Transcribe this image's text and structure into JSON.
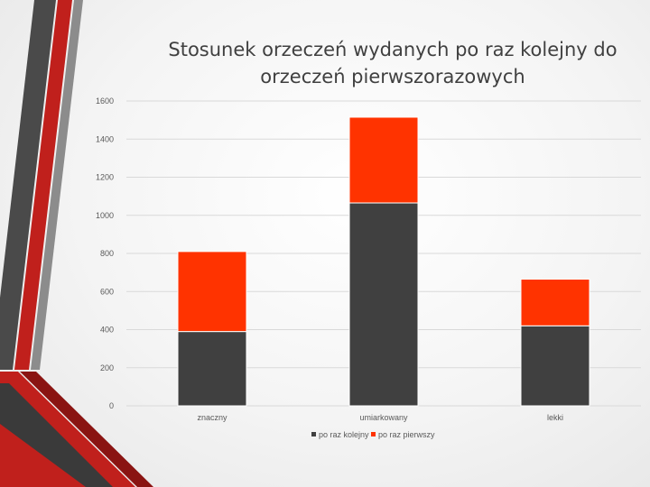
{
  "title_lines": [
    "Stosunek orzeczeń wydanych po raz kolejny do",
    "orzeczeń pierwszorazowych"
  ],
  "colors": {
    "series_1": "#404040",
    "series_2": "#ff3300",
    "grid": "#d9d9d9",
    "deco_red": "#c0201c",
    "deco_dark": "#3a3a3a"
  },
  "chart_data": {
    "type": "bar",
    "stacked": true,
    "title": "Stosunek orzeczeń wydanych po raz kolejny do orzeczeń pierwszorazowych",
    "categories": [
      "znaczny",
      "umiarkowany",
      "lekki"
    ],
    "series": [
      {
        "name": "po raz kolejny",
        "values": [
          390,
          1065,
          420
        ]
      },
      {
        "name": "po raz pierwszy",
        "values": [
          420,
          450,
          245
        ]
      }
    ],
    "ylim": [
      0,
      1600
    ],
    "yticks": [
      "0",
      "200",
      "400",
      "600",
      "800",
      "1000",
      "1200",
      "1400",
      "1600"
    ],
    "grid": true,
    "legend": "bottom"
  }
}
